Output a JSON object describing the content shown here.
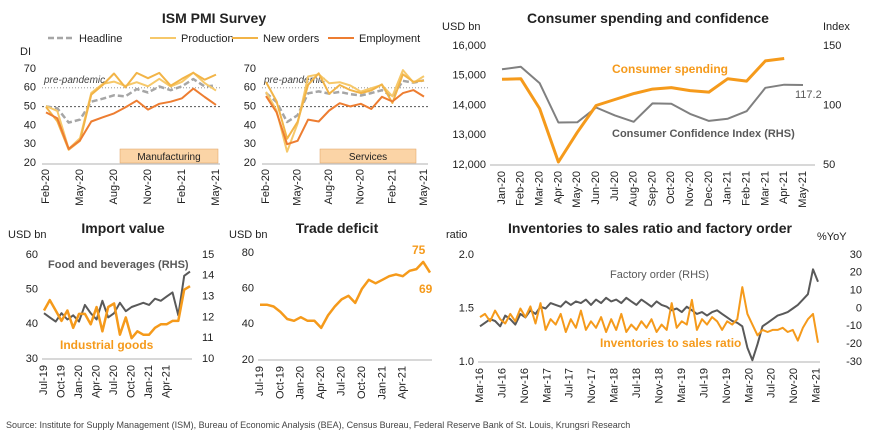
{
  "source": "Source: Institute for Supply Management (ISM), Bureau of Economic Analysis (BEA), Census Bureau, Federal Reserve Bank of St. Louis, Krungsri Research",
  "colors": {
    "headline": "#a6a6a6",
    "production": "#f6c86a",
    "new_orders": "#f2b447",
    "employment": "#ed7d31",
    "orange": "#f59a1b",
    "gray": "#808080",
    "dark_gray": "#595959",
    "box_fill": "#fbd4a6"
  },
  "chart_data": [
    {
      "type": "line",
      "title": "ISM PMI Survey",
      "ylabel": "DI",
      "legend": [
        "Headline",
        "Production",
        "New orders",
        "Employment"
      ],
      "legend_position": "top",
      "panels": [
        {
          "label": "Manufacturing",
          "annotation": "pre-pandemic",
          "reference_line": 50,
          "x": [
            "Feb-20",
            "Mar-20",
            "Apr-20",
            "May-20",
            "Jun-20",
            "Jul-20",
            "Aug-20",
            "Sep-20",
            "Oct-20",
            "Nov-20",
            "Dec-20",
            "Jan-21",
            "Feb-21",
            "Mar-21",
            "Apr-21",
            "May-21"
          ],
          "x_ticks": [
            "Feb-20",
            "May-20",
            "Aug-20",
            "Nov-20",
            "Feb-21",
            "May-21"
          ],
          "ylim": [
            20,
            70
          ],
          "yticks": [
            20,
            30,
            40,
            50,
            60,
            70
          ],
          "series": [
            {
              "name": "Headline",
              "values": [
                50.1,
                49.1,
                41.5,
                43.1,
                52.6,
                54.2,
                56.0,
                55.4,
                59.3,
                57.5,
                60.7,
                58.7,
                60.8,
                64.7,
                60.7,
                61.2
              ]
            },
            {
              "name": "Production",
              "values": [
                50.3,
                47.7,
                27.5,
                33.2,
                57.3,
                62.1,
                63.3,
                61.0,
                63.0,
                60.8,
                64.8,
                60.7,
                63.2,
                68.1,
                62.5,
                58.5
              ]
            },
            {
              "name": "New orders",
              "values": [
                49.8,
                42.2,
                27.1,
                31.8,
                56.4,
                61.5,
                67.6,
                60.2,
                67.9,
                65.1,
                67.9,
                61.1,
                64.8,
                68.0,
                64.3,
                67.0
              ]
            },
            {
              "name": "Employment",
              "values": [
                46.9,
                43.8,
                27.5,
                32.1,
                42.1,
                44.3,
                46.4,
                49.6,
                53.2,
                48.4,
                51.5,
                52.6,
                54.4,
                59.6,
                55.1,
                50.9
              ]
            }
          ]
        },
        {
          "label": "Services",
          "annotation": "pre-pandemic",
          "reference_line": 50,
          "x": [
            "Feb-20",
            "Mar-20",
            "Apr-20",
            "May-20",
            "Jun-20",
            "Jul-20",
            "Aug-20",
            "Sep-20",
            "Oct-20",
            "Nov-20",
            "Dec-20",
            "Jan-21",
            "Feb-21",
            "Mar-21",
            "Apr-21",
            "May-21"
          ],
          "x_ticks": [
            "Feb-20",
            "May-20",
            "Aug-20",
            "Nov-20",
            "Feb-21",
            "May-21"
          ],
          "ylim": [
            20,
            70
          ],
          "yticks": [
            20,
            30,
            40,
            50,
            60,
            70
          ],
          "series": [
            {
              "name": "Headline",
              "values": [
                57.3,
                52.5,
                41.8,
                45.4,
                57.1,
                58.1,
                56.9,
                57.8,
                56.6,
                55.9,
                57.2,
                58.7,
                55.3,
                63.7,
                62.7,
                64.0
              ]
            },
            {
              "name": "Production",
              "values": [
                57.8,
                48.0,
                26.0,
                41.0,
                66.0,
                67.2,
                62.4,
                63.0,
                61.2,
                58.0,
                59.8,
                61.5,
                55.5,
                69.4,
                62.7,
                66.2
              ]
            },
            {
              "name": "New orders",
              "values": [
                63.1,
                52.9,
                32.9,
                41.9,
                61.6,
                67.7,
                56.8,
                61.5,
                58.8,
                57.2,
                58.6,
                61.8,
                51.9,
                67.2,
                63.2,
                63.9
              ]
            },
            {
              "name": "Employment",
              "values": [
                55.6,
                47.0,
                30.0,
                31.8,
                43.1,
                42.1,
                47.9,
                51.8,
                50.1,
                51.5,
                48.7,
                55.2,
                52.7,
                57.2,
                58.8,
                55.3
              ]
            }
          ]
        }
      ]
    },
    {
      "type": "line",
      "title": "Consumer spending and confidence",
      "ylabel_left": "USD bn",
      "ylabel_right": "Index",
      "x": [
        "Jan-20",
        "Feb-20",
        "Mar-20",
        "Apr-20",
        "May-20",
        "Jun-20",
        "Jul-20",
        "Aug-20",
        "Sep-20",
        "Oct-20",
        "Nov-20",
        "Dec-20",
        "Jan-21",
        "Feb-21",
        "Mar-21",
        "Apr-21",
        "May-21"
      ],
      "ylim_left": [
        12000,
        16000
      ],
      "yticks_left": [
        12000,
        13000,
        14000,
        15000,
        16000
      ],
      "ylim_right": [
        50,
        150
      ],
      "yticks_right": [
        50,
        100,
        150
      ],
      "series": [
        {
          "name": "Consumer spending",
          "axis": "left",
          "label": "Consumer spending",
          "values": [
            14880,
            14900,
            13900,
            12100,
            13100,
            14000,
            14200,
            14400,
            14550,
            14600,
            14500,
            14450,
            14900,
            14820,
            15500,
            15580,
            null
          ]
        },
        {
          "name": "Consumer Confidence Index (RHS)",
          "axis": "right",
          "label": "Consumer Confidence Index (RHS)",
          "values": [
            130.4,
            132.6,
            118.8,
            85.7,
            85.9,
            98.3,
            91.7,
            86.3,
            101.8,
            101.4,
            92.9,
            87.1,
            88.9,
            95.2,
            114.9,
            117.5,
            117.2
          ]
        }
      ],
      "annotations": [
        "117.2"
      ]
    },
    {
      "type": "line",
      "title": "Import value",
      "ylabel_left": "USD bn",
      "x_ticks": [
        "Jul-19",
        "Oct-19",
        "Jan-20",
        "Apr-20",
        "Jul-20",
        "Oct-20",
        "Jan-21",
        "Apr-21"
      ],
      "ylim_left": [
        30,
        60
      ],
      "yticks_left": [
        30,
        40,
        50,
        60
      ],
      "ylim_right": [
        10,
        15
      ],
      "yticks_right": [
        10,
        11,
        12,
        13,
        14,
        15
      ],
      "series": [
        {
          "name": "Food and beverages (RHS)",
          "axis": "right",
          "label": "Food and beverages (RHS)",
          "values": [
            12.2,
            12.0,
            11.8,
            12.2,
            11.9,
            12.1,
            11.8,
            12.6,
            12.2,
            11.9,
            12.8,
            12.0,
            12.2,
            12.7,
            12.3,
            12.5,
            12.6,
            12.7,
            12.6,
            12.9,
            12.8,
            13.0,
            13.2,
            12.1,
            14.0,
            14.2
          ]
        },
        {
          "name": "Industrial goods",
          "axis": "left",
          "label": "Industrial goods",
          "values": [
            44,
            47,
            44,
            41,
            44,
            39,
            43,
            43,
            40,
            45,
            38,
            45,
            46,
            37,
            42,
            36,
            38,
            37,
            37,
            39,
            40,
            40,
            41,
            41,
            50,
            51
          ]
        }
      ]
    },
    {
      "type": "line",
      "title": "Trade deficit",
      "ylabel": "USD bn",
      "x_ticks": [
        "Jul-19",
        "Oct-19",
        "Jan-20",
        "Apr-20",
        "Jul-20",
        "Oct-20",
        "Jan-21",
        "Apr-21"
      ],
      "ylim": [
        20,
        80
      ],
      "yticks": [
        20,
        40,
        60,
        80
      ],
      "series": [
        {
          "name": "Trade deficit",
          "values": [
            51,
            51,
            50,
            47,
            43,
            42,
            44,
            42,
            42,
            38,
            45,
            50,
            54,
            56,
            52,
            60,
            65,
            63,
            65,
            67,
            68,
            67,
            70,
            71,
            75,
            69
          ]
        }
      ],
      "annotations": [
        "75",
        "69"
      ]
    },
    {
      "type": "line",
      "title": "Inventories to sales ratio and factory order",
      "ylabel_left": "ratio",
      "ylabel_right": "%YoY",
      "x_ticks": [
        "Mar-16",
        "Jul-16",
        "Nov-16",
        "Mar-17",
        "Jul-17",
        "Nov-17",
        "Mar-18",
        "Jul-18",
        "Nov-18",
        "Mar-19",
        "Jul-19",
        "Nov-19",
        "Mar-20",
        "Jul-20",
        "Nov-20",
        "Mar-21"
      ],
      "ylim_left": [
        1.0,
        2.0
      ],
      "yticks_left": [
        1.0,
        1.5,
        2.0
      ],
      "ylim_right": [
        -30,
        30
      ],
      "yticks_right": [
        -30,
        -20,
        -10,
        0,
        10,
        20,
        30
      ],
      "series": [
        {
          "name": "Factory order (RHS)",
          "axis": "right",
          "label": "Factory order (RHS)",
          "values": [
            -10,
            -8,
            -6,
            -7,
            -10,
            -4,
            -6,
            -9,
            -3,
            -5,
            -1,
            -3,
            1,
            0,
            3,
            2,
            1,
            4,
            2,
            4,
            3,
            5,
            2,
            5,
            3,
            6,
            4,
            5,
            3,
            6,
            4,
            2,
            5,
            3,
            1,
            4,
            2,
            1,
            -1,
            0,
            -2,
            1,
            -1,
            -3,
            -2,
            -4,
            -2,
            -1,
            -3,
            -5,
            -7,
            -8,
            -10,
            -22,
            -29,
            -20,
            -10,
            -8,
            -6,
            -4,
            -3,
            -2,
            0,
            2,
            5,
            8,
            22,
            15
          ]
        },
        {
          "name": "Inventories to sales ratio",
          "axis": "left",
          "label": "Inventories to sales ratio",
          "values": [
            1.42,
            1.45,
            1.38,
            1.48,
            1.4,
            1.36,
            1.45,
            1.38,
            1.5,
            1.42,
            1.52,
            1.36,
            1.55,
            1.3,
            1.4,
            1.35,
            1.45,
            1.28,
            1.4,
            1.32,
            1.48,
            1.3,
            1.38,
            1.32,
            1.42,
            1.28,
            1.4,
            1.3,
            1.45,
            1.28,
            1.35,
            1.3,
            1.38,
            1.32,
            1.4,
            1.28,
            1.35,
            1.3,
            1.55,
            1.32,
            1.38,
            1.35,
            1.58,
            1.3,
            1.4,
            1.35,
            1.42,
            1.38,
            1.3,
            1.38,
            1.35,
            1.4,
            1.7,
            1.45,
            1.35,
            1.25,
            1.3,
            1.28,
            1.3,
            1.3,
            1.32,
            1.28,
            1.3,
            1.2,
            1.32,
            1.4,
            1.45,
            1.18
          ]
        }
      ]
    }
  ]
}
